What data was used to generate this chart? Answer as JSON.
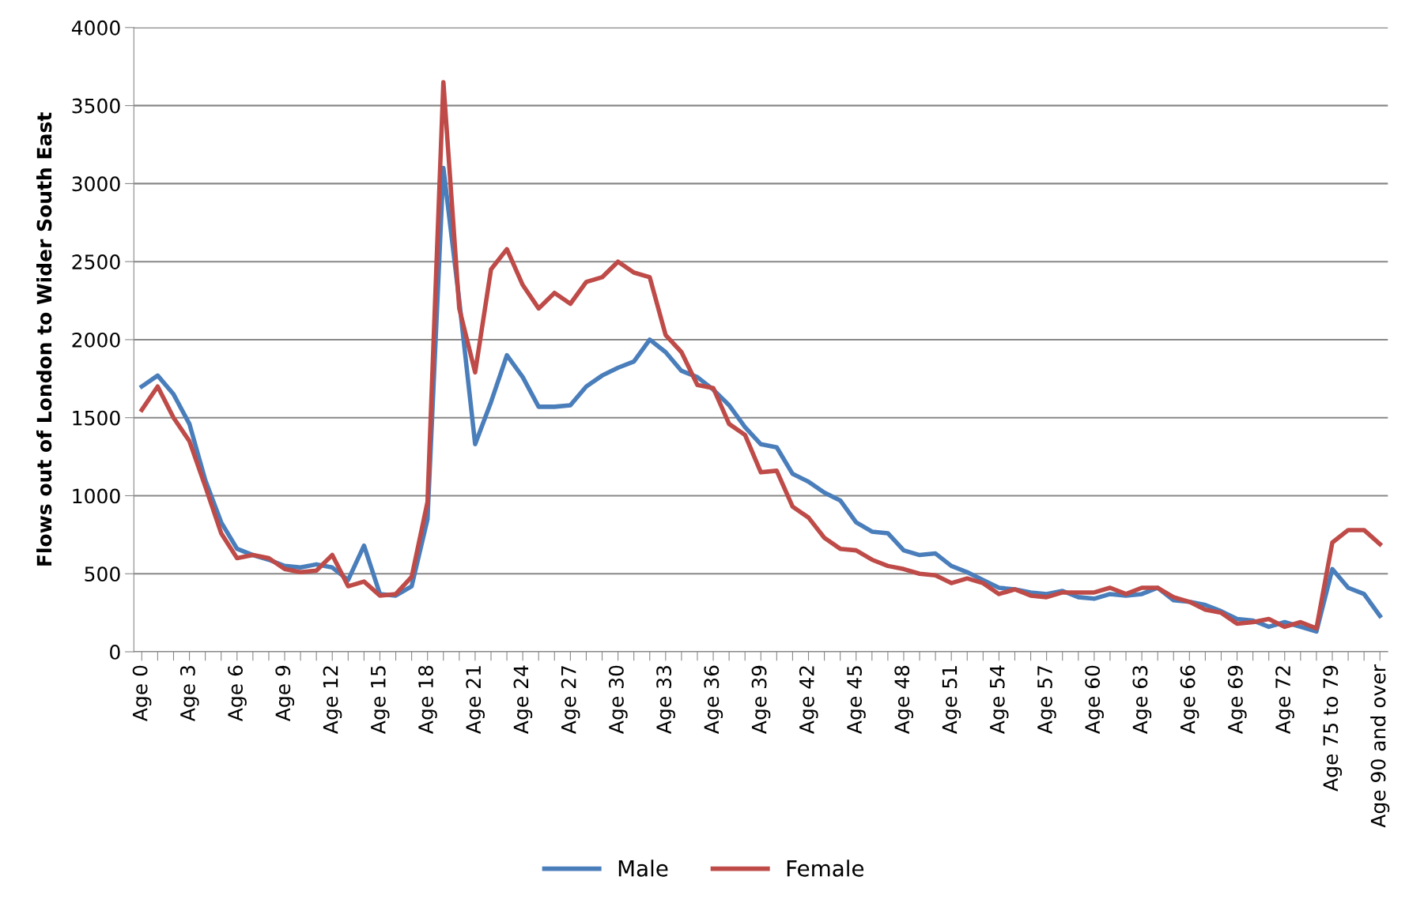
{
  "chart_data": {
    "type": "line",
    "ylabel": "Flows out of London to Wider South East",
    "categories": [
      "Age 0",
      null,
      null,
      "Age 3",
      null,
      null,
      "Age 6",
      null,
      null,
      "Age 9",
      null,
      null,
      "Age 12",
      null,
      null,
      "Age 15",
      null,
      null,
      "Age 18",
      null,
      null,
      "Age 21",
      null,
      null,
      "Age 24",
      null,
      null,
      "Age 27",
      null,
      null,
      "Age 30",
      null,
      null,
      "Age 33",
      null,
      null,
      "Age 36",
      null,
      null,
      "Age 39",
      null,
      null,
      "Age 42",
      null,
      null,
      "Age 45",
      null,
      null,
      "Age 48",
      null,
      null,
      "Age 51",
      null,
      null,
      "Age 54",
      null,
      null,
      "Age 57",
      null,
      null,
      "Age 60",
      null,
      null,
      "Age 63",
      null,
      null,
      "Age 66",
      null,
      null,
      "Age 69",
      null,
      null,
      "Age 72",
      null,
      null,
      "Age 75 to 79",
      null,
      null,
      "Age 90 and over"
    ],
    "series": [
      {
        "name": "Male",
        "color": "#4a7ebb",
        "values": [
          1700,
          1770,
          1650,
          1460,
          1100,
          830,
          660,
          620,
          590,
          550,
          540,
          560,
          540,
          460,
          680,
          370,
          360,
          420,
          850,
          3100,
          2250,
          1330,
          1600,
          1900,
          1760,
          1570,
          1570,
          1580,
          1700,
          1770,
          1820,
          1860,
          2000,
          1920,
          1800,
          1760,
          1680,
          1580,
          1440,
          1330,
          1310,
          1140,
          1090,
          1020,
          970,
          830,
          770,
          760,
          650,
          620,
          630,
          550,
          510,
          460,
          410,
          400,
          380,
          370,
          390,
          350,
          340,
          370,
          360,
          370,
          410,
          330,
          320,
          300,
          260,
          210,
          200,
          160,
          190,
          160,
          130,
          530,
          410,
          370,
          230
        ]
      },
      {
        "name": "Female",
        "color": "#be4b48",
        "values": [
          1550,
          1700,
          1500,
          1350,
          1060,
          760,
          600,
          620,
          600,
          530,
          510,
          520,
          620,
          420,
          450,
          360,
          370,
          480,
          960,
          3650,
          2200,
          1790,
          2450,
          2580,
          2350,
          2200,
          2300,
          2230,
          2370,
          2400,
          2500,
          2430,
          2400,
          2030,
          1920,
          1710,
          1690,
          1460,
          1390,
          1150,
          1160,
          930,
          860,
          730,
          660,
          650,
          590,
          550,
          530,
          500,
          490,
          440,
          470,
          440,
          370,
          400,
          360,
          350,
          380,
          380,
          380,
          410,
          370,
          410,
          410,
          350,
          320,
          270,
          250,
          180,
          190,
          210,
          160,
          190,
          150,
          700,
          780,
          780,
          690
        ]
      }
    ],
    "ylim": [
      0,
      4000
    ],
    "yticks": [
      0,
      500,
      1000,
      1500,
      2000,
      2500,
      3000,
      3500,
      4000
    ],
    "grid": "y",
    "legend": "bottom",
    "marker": "none",
    "line_style": "solid"
  }
}
